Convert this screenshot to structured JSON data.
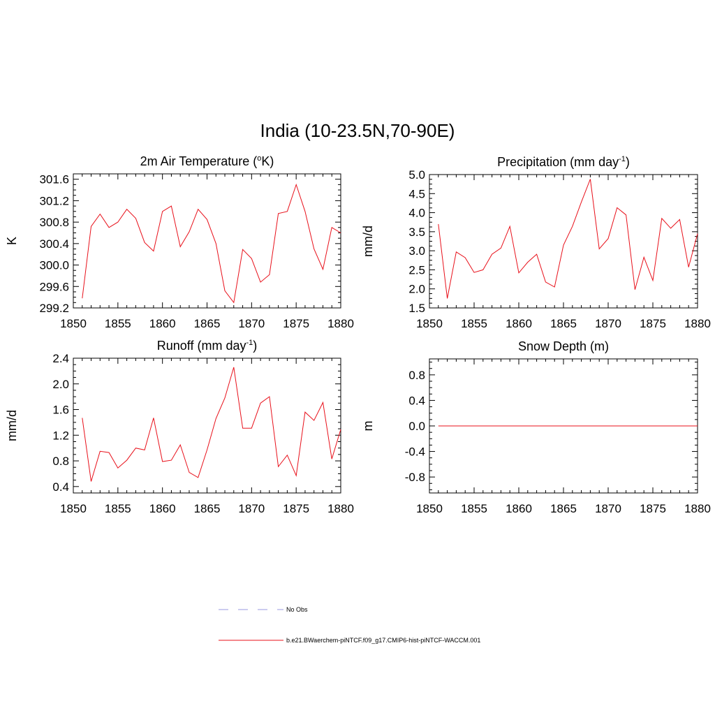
{
  "figure": {
    "title": "India (10-23.5N,70-90E)"
  },
  "colors": {
    "model": "#e8101a",
    "obs": "#9a9ae0"
  },
  "legend": {
    "entries": [
      {
        "label": "No Obs",
        "style": "dashed",
        "color": "#9a9ae0"
      },
      {
        "label": "b.e21.BWaerchem-piNTCF.f09_g17.CMIP6-hist-piNTCF-WACCM.001",
        "style": "solid",
        "color": "#e8101a"
      }
    ]
  },
  "chart_data": [
    {
      "type": "line",
      "title": "2m Air Temperature (",
      "title_sup": "o",
      "title_tail": "K)",
      "ylabel": "K",
      "xlim": [
        1850,
        1880
      ],
      "ylim": [
        299.2,
        301.7
      ],
      "xticks": [
        1850,
        1855,
        1860,
        1865,
        1870,
        1875,
        1880
      ],
      "yticks": [
        299.2,
        299.6,
        300.0,
        300.4,
        300.8,
        301.2,
        301.6
      ],
      "ytick_labels": [
        "299.2",
        "299.6",
        "300.0",
        "300.4",
        "300.8",
        "301.2",
        "301.6"
      ],
      "series": [
        {
          "x": [
            1851,
            1852,
            1853,
            1854,
            1855,
            1856,
            1857,
            1858,
            1859,
            1860,
            1861,
            1862,
            1863,
            1864,
            1865,
            1866,
            1867,
            1868,
            1869,
            1870,
            1871,
            1872,
            1873,
            1874,
            1875,
            1876,
            1877,
            1878,
            1879,
            1880
          ],
          "values": [
            299.38,
            300.72,
            300.95,
            300.7,
            300.8,
            301.04,
            300.87,
            300.42,
            300.26,
            301.0,
            301.1,
            300.34,
            300.62,
            301.04,
            300.85,
            300.4,
            299.52,
            299.3,
            300.29,
            300.12,
            299.68,
            299.82,
            300.96,
            301.0,
            301.5,
            301.0,
            300.3,
            299.92,
            300.7,
            300.6
          ]
        }
      ]
    },
    {
      "type": "line",
      "title": "Precipitation (mm day",
      "title_sup": "-1",
      "title_tail": ")",
      "ylabel": "mm/d",
      "xlim": [
        1850,
        1880
      ],
      "ylim": [
        1.5,
        5.0
      ],
      "xticks": [
        1850,
        1855,
        1860,
        1865,
        1870,
        1875,
        1880
      ],
      "yticks": [
        1.5,
        2.0,
        2.5,
        3.0,
        3.5,
        4.0,
        4.5,
        5.0
      ],
      "ytick_labels": [
        "1.5",
        "2.0",
        "2.5",
        "3.0",
        "3.5",
        "4.0",
        "4.5",
        "5.0"
      ],
      "series": [
        {
          "x": [
            1851,
            1852,
            1853,
            1854,
            1855,
            1856,
            1857,
            1858,
            1859,
            1860,
            1861,
            1862,
            1863,
            1864,
            1865,
            1866,
            1867,
            1868,
            1869,
            1870,
            1871,
            1872,
            1873,
            1874,
            1875,
            1876,
            1877,
            1878,
            1879,
            1880
          ],
          "values": [
            3.7,
            1.75,
            2.97,
            2.82,
            2.43,
            2.5,
            2.91,
            3.07,
            3.64,
            2.42,
            2.7,
            2.91,
            2.18,
            2.05,
            3.15,
            3.64,
            4.28,
            4.88,
            3.05,
            3.32,
            4.13,
            3.94,
            1.98,
            2.83,
            2.22,
            3.85,
            3.59,
            3.82,
            2.57,
            3.45
          ]
        }
      ]
    },
    {
      "type": "line",
      "title": "Runoff (mm day",
      "title_sup": "-1",
      "title_tail": ")",
      "ylabel": "mm/d",
      "xlim": [
        1850,
        1880
      ],
      "ylim": [
        0.3,
        2.4
      ],
      "xticks": [
        1850,
        1855,
        1860,
        1865,
        1870,
        1875,
        1880
      ],
      "yticks": [
        0.4,
        0.8,
        1.2,
        1.6,
        2.0,
        2.4
      ],
      "ytick_labels": [
        "0.4",
        "0.8",
        "1.2",
        "1.6",
        "2.0",
        "2.4"
      ],
      "series": [
        {
          "x": [
            1851,
            1852,
            1853,
            1854,
            1855,
            1856,
            1857,
            1858,
            1859,
            1860,
            1861,
            1862,
            1863,
            1864,
            1865,
            1866,
            1867,
            1868,
            1869,
            1870,
            1871,
            1872,
            1873,
            1874,
            1875,
            1876,
            1877,
            1878,
            1879,
            1880
          ],
          "values": [
            1.47,
            0.48,
            0.95,
            0.93,
            0.69,
            0.81,
            1.0,
            0.97,
            1.47,
            0.79,
            0.81,
            1.05,
            0.62,
            0.54,
            0.97,
            1.46,
            1.78,
            2.26,
            1.31,
            1.31,
            1.7,
            1.8,
            0.71,
            0.89,
            0.57,
            1.56,
            1.43,
            1.71,
            0.83,
            1.29
          ]
        }
      ]
    },
    {
      "type": "line",
      "title": "Snow Depth (m)",
      "title_sup": "",
      "title_tail": "",
      "ylabel": "m",
      "xlim": [
        1850,
        1880
      ],
      "ylim": [
        -1.05,
        1.05
      ],
      "xticks": [
        1850,
        1855,
        1860,
        1865,
        1870,
        1875,
        1880
      ],
      "yticks": [
        -0.8,
        -0.4,
        0.0,
        0.4,
        0.8
      ],
      "ytick_labels": [
        "-0.8",
        "-0.4",
        "0.0",
        "0.4",
        "0.8"
      ],
      "series": [
        {
          "x": [
            1851,
            1852,
            1853,
            1854,
            1855,
            1856,
            1857,
            1858,
            1859,
            1860,
            1861,
            1862,
            1863,
            1864,
            1865,
            1866,
            1867,
            1868,
            1869,
            1870,
            1871,
            1872,
            1873,
            1874,
            1875,
            1876,
            1877,
            1878,
            1879,
            1880
          ],
          "values": [
            0,
            0,
            0,
            0,
            0,
            0,
            0,
            0,
            0,
            0,
            0,
            0,
            0,
            0,
            0,
            0,
            0,
            0,
            0,
            0,
            0,
            0,
            0,
            0,
            0,
            0,
            0,
            0,
            0,
            0
          ]
        }
      ]
    }
  ]
}
